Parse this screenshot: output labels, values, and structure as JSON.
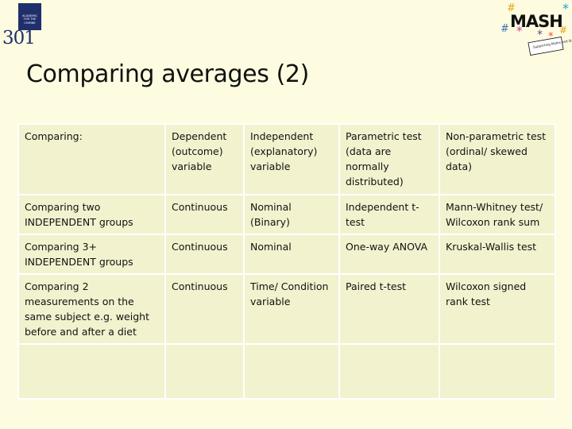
{
  "logo": {
    "box_lines": [
      "ACADEMIC",
      "FOR THE",
      "CHIMNE"
    ],
    "number": "301"
  },
  "mash_logo": {
    "text": "MASH",
    "tagline": "Supporting Maths and Statistics"
  },
  "slide": {
    "title": "Comparing averages (2)"
  },
  "table": {
    "header": [
      "Comparing:",
      "Dependent (outcome) variable",
      "Independent (explanatory) variable",
      "Parametric test (data are normally distributed)",
      "Non-parametric test (ordinal/ skewed data)"
    ],
    "rows": [
      [
        "Comparing two INDEPENDENT groups",
        "Continuous",
        "Nominal (Binary)",
        "Independent t-test",
        "Mann-Whitney test/ Wilcoxon rank sum"
      ],
      [
        "Comparing 3+ INDEPENDENT groups",
        "Continuous",
        "Nominal",
        "One-way ANOVA",
        "Kruskal-Wallis test"
      ],
      [
        "Comparing 2 measurements on the same subject e.g. weight before and after a diet",
        "Continuous",
        "Time/ Condition variable",
        "Paired t-test",
        "Wilcoxon signed rank test"
      ],
      [
        "",
        "",
        "",
        "",
        ""
      ]
    ]
  },
  "colors": {
    "background": "#fdfce0",
    "cell": "#f2f2cf",
    "logo_navy": "#1f2f6d"
  }
}
